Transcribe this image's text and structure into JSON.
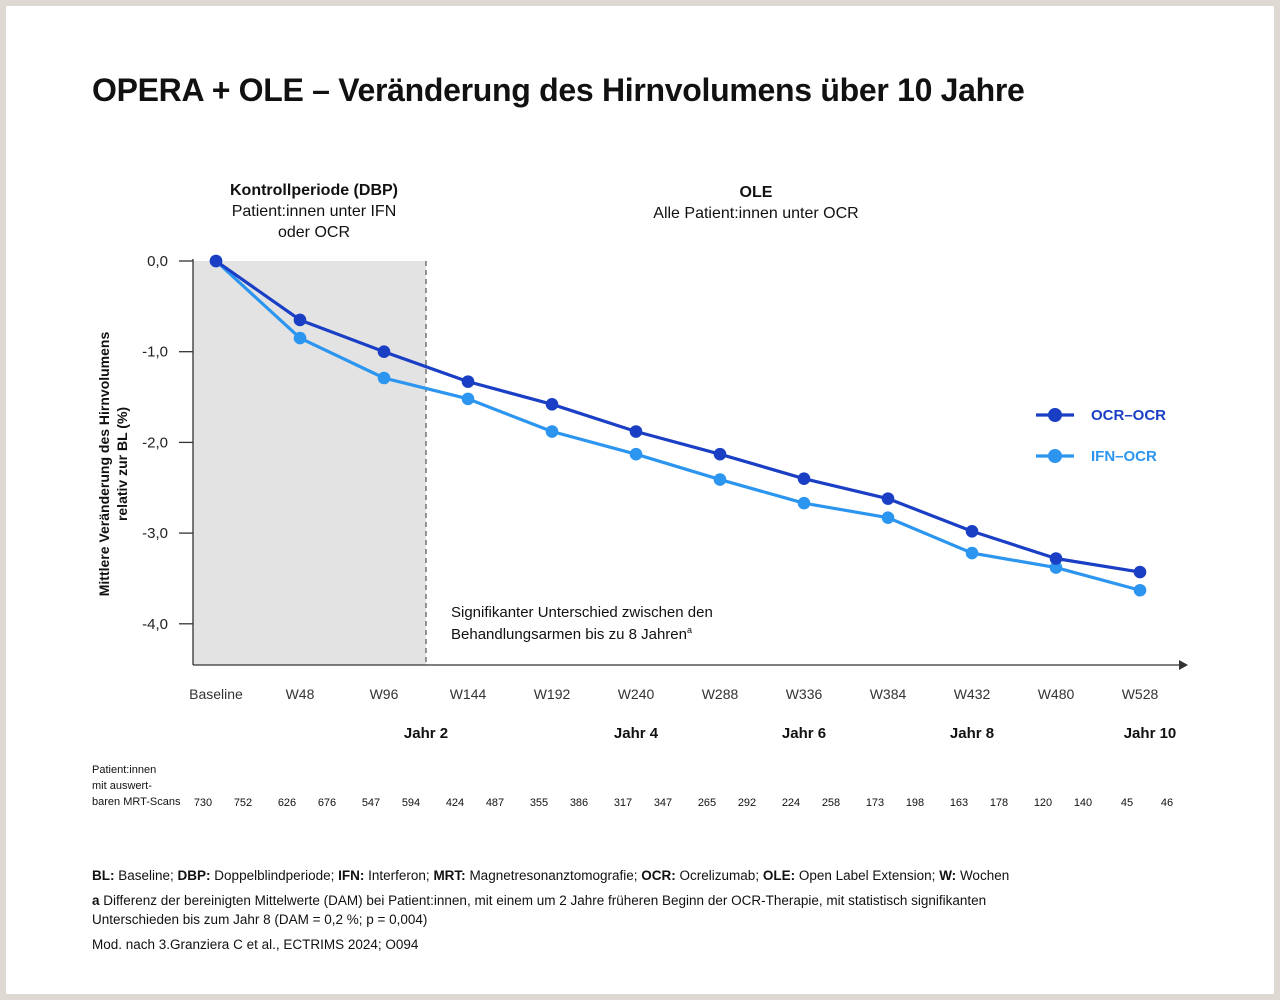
{
  "title": "OPERA + OLE – Veränderung des Hirnvolumens über 10 Jahre",
  "periods": {
    "dbp": {
      "heading": "Kontrollperiode (DBP)",
      "line1": "Patient:innen unter IFN",
      "line2": "oder OCR"
    },
    "ole": {
      "heading": "OLE",
      "line1": "Alle Patient:innen unter OCR"
    }
  },
  "annotation": {
    "line1": "Signifikanter Unterschied zwischen den",
    "line2": "Behandlungsarmen bis zu 8 Jahren",
    "sup": "a"
  },
  "patients": {
    "label_lines": [
      "Patient:innen",
      "mit auswert-",
      "baren MRT-Scans"
    ],
    "ocr_ocr": [
      730,
      626,
      547,
      424,
      355,
      317,
      265,
      224,
      173,
      163,
      120,
      45
    ],
    "ifn_ocr": [
      752,
      676,
      594,
      487,
      386,
      347,
      292,
      258,
      198,
      178,
      140,
      46
    ]
  },
  "footer": {
    "abbreviations": [
      {
        "key": "BL:",
        "text": " Baseline; "
      },
      {
        "key": "DBP:",
        "text": " Doppelblindperiode; "
      },
      {
        "key": "IFN:",
        "text": " Interferon; "
      },
      {
        "key": "MRT:",
        "text": " Magnetresonanztomografie; "
      },
      {
        "key": "OCR:",
        "text": " Ocrelizumab; "
      },
      {
        "key": "OLE:",
        "text": " Open Label Extension; "
      },
      {
        "key": "W:",
        "text": " Wochen"
      }
    ],
    "note_key": "a",
    "note_line1": " Differenz der bereinigten Mittelwerte (DAM) bei Patient:innen, mit einem um 2 Jahre früheren Beginn der OCR-Therapie, mit statistisch signifikanten",
    "note_line2": "Unterschieden bis zum Jahr 8 (DAM = 0,2 %; p = 0,004)",
    "source": "Mod. nach  3.Granziera C et al., ECTRIMS 2024; O094"
  },
  "chart_data": {
    "type": "line",
    "title": "OPERA + OLE – Veränderung des Hirnvolumens über 10 Jahre",
    "xlabel": "",
    "ylabel": "Mittlere Veränderung des Hirnvolumens relativ zur BL (%)",
    "ylabel_lines": [
      "Mittlere Veränderung des Hirnvolumens",
      "relativ zur BL (%)"
    ],
    "categories": [
      "Baseline",
      "W48",
      "W96",
      "W144",
      "W192",
      "W240",
      "W288",
      "W336",
      "W384",
      "W432",
      "W480",
      "W528"
    ],
    "year_labels": [
      {
        "after_category": "W96",
        "label": "Jahr 2"
      },
      {
        "at_category": "W240",
        "label": "Jahr 4"
      },
      {
        "at_category": "W336",
        "label": "Jahr 6"
      },
      {
        "at_category": "W432",
        "label": "Jahr 8"
      },
      {
        "at_category": "W528",
        "label": "Jahr 10"
      }
    ],
    "yticks": [
      0,
      -1,
      -2,
      -3,
      -4
    ],
    "ytick_labels": [
      "0,0",
      "-1,0",
      "-2,0",
      "-3,0",
      "-4,0"
    ],
    "ylim": [
      -4.45,
      0.05
    ],
    "series": [
      {
        "name": "OCR–OCR",
        "color": "#1a3fc4",
        "values": [
          0,
          -0.65,
          -1.0,
          -1.33,
          -1.58,
          -1.88,
          -2.13,
          -2.4,
          -2.62,
          -2.98,
          -3.28,
          -3.43
        ]
      },
      {
        "name": "IFN–OCR",
        "color": "#2b95f0",
        "values": [
          0,
          -0.85,
          -1.29,
          -1.52,
          -1.88,
          -2.13,
          -2.41,
          -2.67,
          -2.83,
          -3.22,
          -3.38,
          -3.63
        ]
      }
    ],
    "shaded_region": {
      "label": "DBP",
      "from_category": "Baseline",
      "to": "W120",
      "color": "#e3e3e3"
    },
    "legend": "right",
    "grid": false
  }
}
